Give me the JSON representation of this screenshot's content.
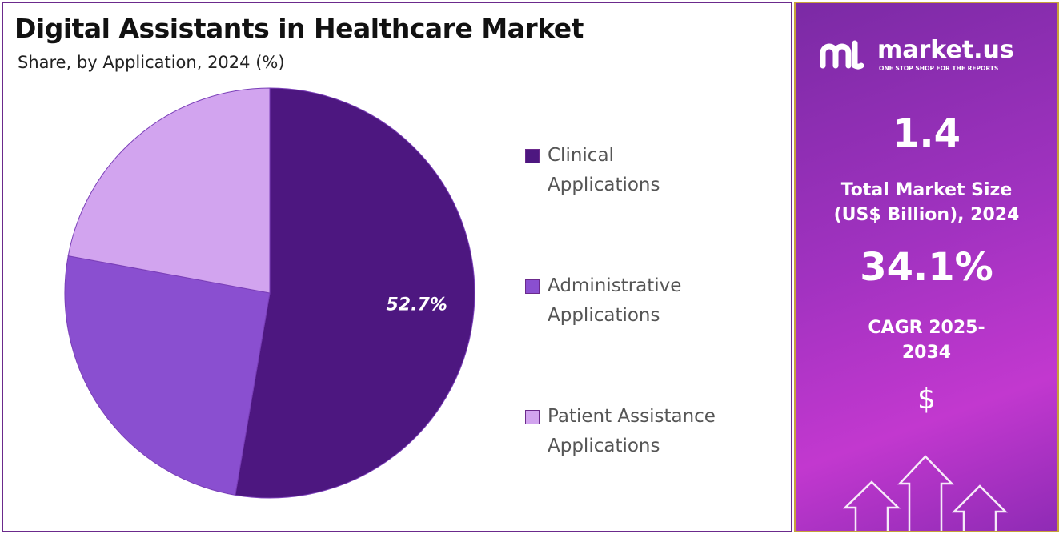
{
  "chart_data": {
    "type": "pie",
    "title": "Digital Assistants in Healthcare Market",
    "subtitle": "Share, by Application, 2024 (%)",
    "categories": [
      "Clinical Applications",
      "Administrative Applications",
      "Patient Assistance Applications"
    ],
    "values": [
      52.7,
      25.2,
      22.1
    ],
    "value_labels": [
      "52.7%",
      null,
      null
    ],
    "colors": [
      "#4d1780",
      "#8a4fd0",
      "#d2a4ef"
    ]
  },
  "side_panel": {
    "brand": "market.us",
    "tagline": "ONE STOP SHOP FOR THE REPORTS",
    "market_size": "1.4",
    "market_size_label": "Total Market Size (US$ Billion), 2024",
    "cagr": "34.1%",
    "cagr_label": "CAGR 2025-2034",
    "currency_icon": "$"
  }
}
